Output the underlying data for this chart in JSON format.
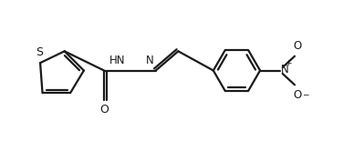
{
  "bg_color": "#ffffff",
  "line_color": "#1a1a1a",
  "line_width": 1.6,
  "font_size": 8.5,
  "figure_size": [
    3.76,
    1.55
  ],
  "dpi": 100,
  "xlim": [
    0,
    7.6
  ],
  "ylim": [
    0,
    3.1
  ]
}
